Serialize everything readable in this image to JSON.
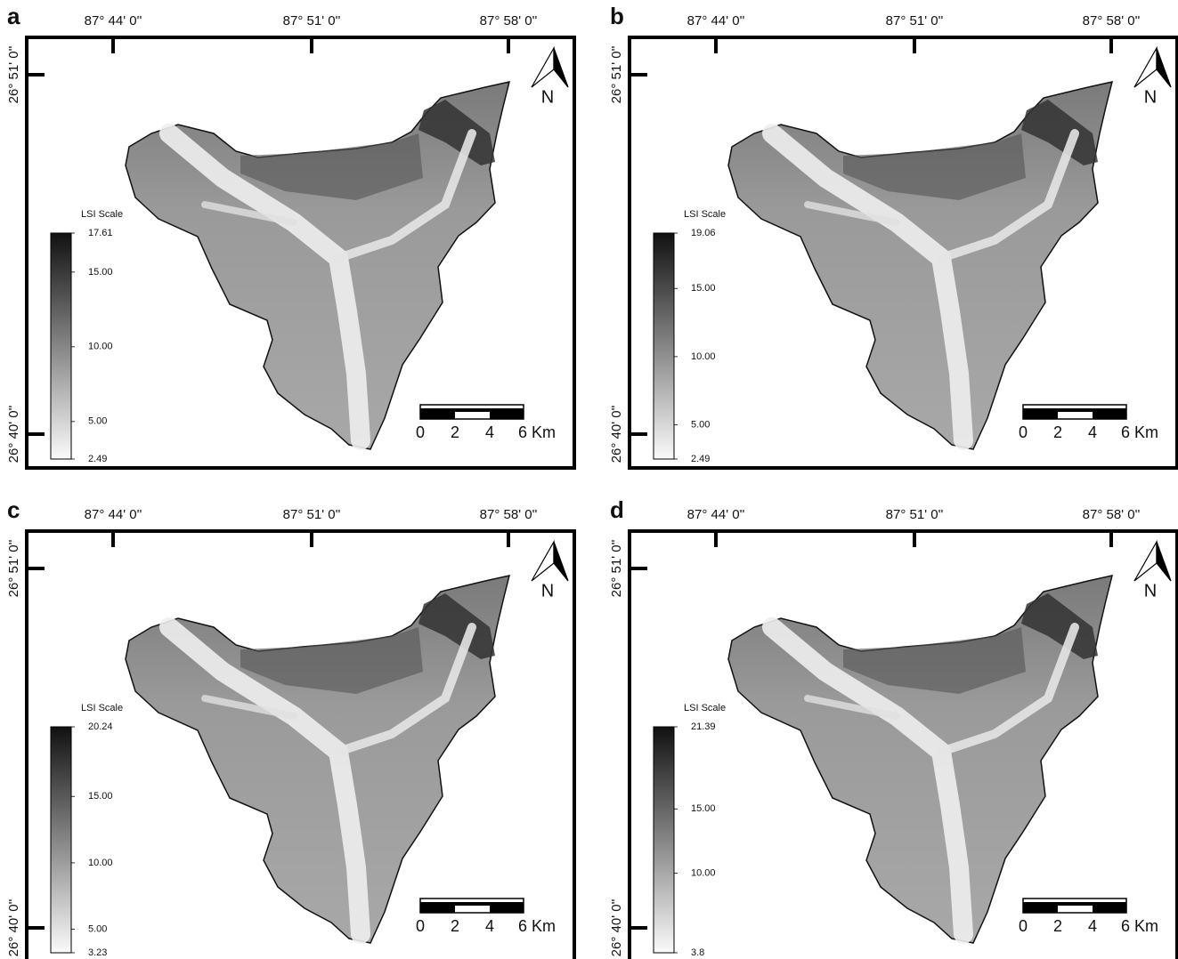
{
  "panels": [
    {
      "label": "a",
      "longitudes": [
        "87° 44' 0''",
        "87° 51' 0''",
        "87° 58' 0''"
      ],
      "latitudes": [
        "26° 51' 0''",
        "26° 40' 0''"
      ],
      "legend": {
        "title": "LSI Scale",
        "ticks": [
          17.61,
          {
            "value": 15,
            "label": "15.00"
          },
          {
            "value": 10,
            "label": "10.00"
          },
          {
            "value": 5,
            "label": "5.00"
          },
          2.49
        ]
      },
      "scale_bar": [
        "0",
        "2",
        "4",
        "6 Km"
      ],
      "north": "N"
    },
    {
      "label": "b",
      "longitudes": [
        "87° 44' 0''",
        "87° 51' 0''",
        "87° 58' 0''"
      ],
      "latitudes": [
        "26° 51' 0''",
        "26° 40' 0''"
      ],
      "legend": {
        "title": "LSI Scale",
        "ticks": [
          19.06,
          {
            "value": 15,
            "label": "15.00"
          },
          {
            "value": 10,
            "label": "10.00"
          },
          {
            "value": 5,
            "label": "5.00"
          },
          2.49
        ]
      },
      "scale_bar": [
        "0",
        "2",
        "4",
        "6 Km"
      ],
      "north": "N"
    },
    {
      "label": "c",
      "longitudes": [
        "87° 44' 0''",
        "87° 51' 0''",
        "87° 58' 0''"
      ],
      "latitudes": [
        "26° 51' 0''",
        "26° 40' 0''"
      ],
      "legend": {
        "title": "LSI Scale",
        "ticks": [
          20.24,
          {
            "value": 15,
            "label": "15.00"
          },
          {
            "value": 10,
            "label": "10.00"
          },
          {
            "value": 5,
            "label": "5.00"
          },
          3.23
        ]
      },
      "scale_bar": [
        "0",
        "2",
        "4",
        "6 Km"
      ],
      "north": "N"
    },
    {
      "label": "d",
      "longitudes": [
        "87° 44' 0''",
        "87° 51' 0''",
        "87° 58' 0''"
      ],
      "latitudes": [
        "26° 51' 0''",
        "26° 40' 0''"
      ],
      "legend": {
        "title": "LSI Scale",
        "ticks": [
          21.39,
          {
            "value": 15,
            "label": "15.00"
          },
          {
            "value": 10,
            "label": "10.00"
          },
          3.8
        ]
      },
      "scale_bar": [
        "0",
        "2",
        "4",
        "6 Km"
      ],
      "north": "N"
    }
  ]
}
